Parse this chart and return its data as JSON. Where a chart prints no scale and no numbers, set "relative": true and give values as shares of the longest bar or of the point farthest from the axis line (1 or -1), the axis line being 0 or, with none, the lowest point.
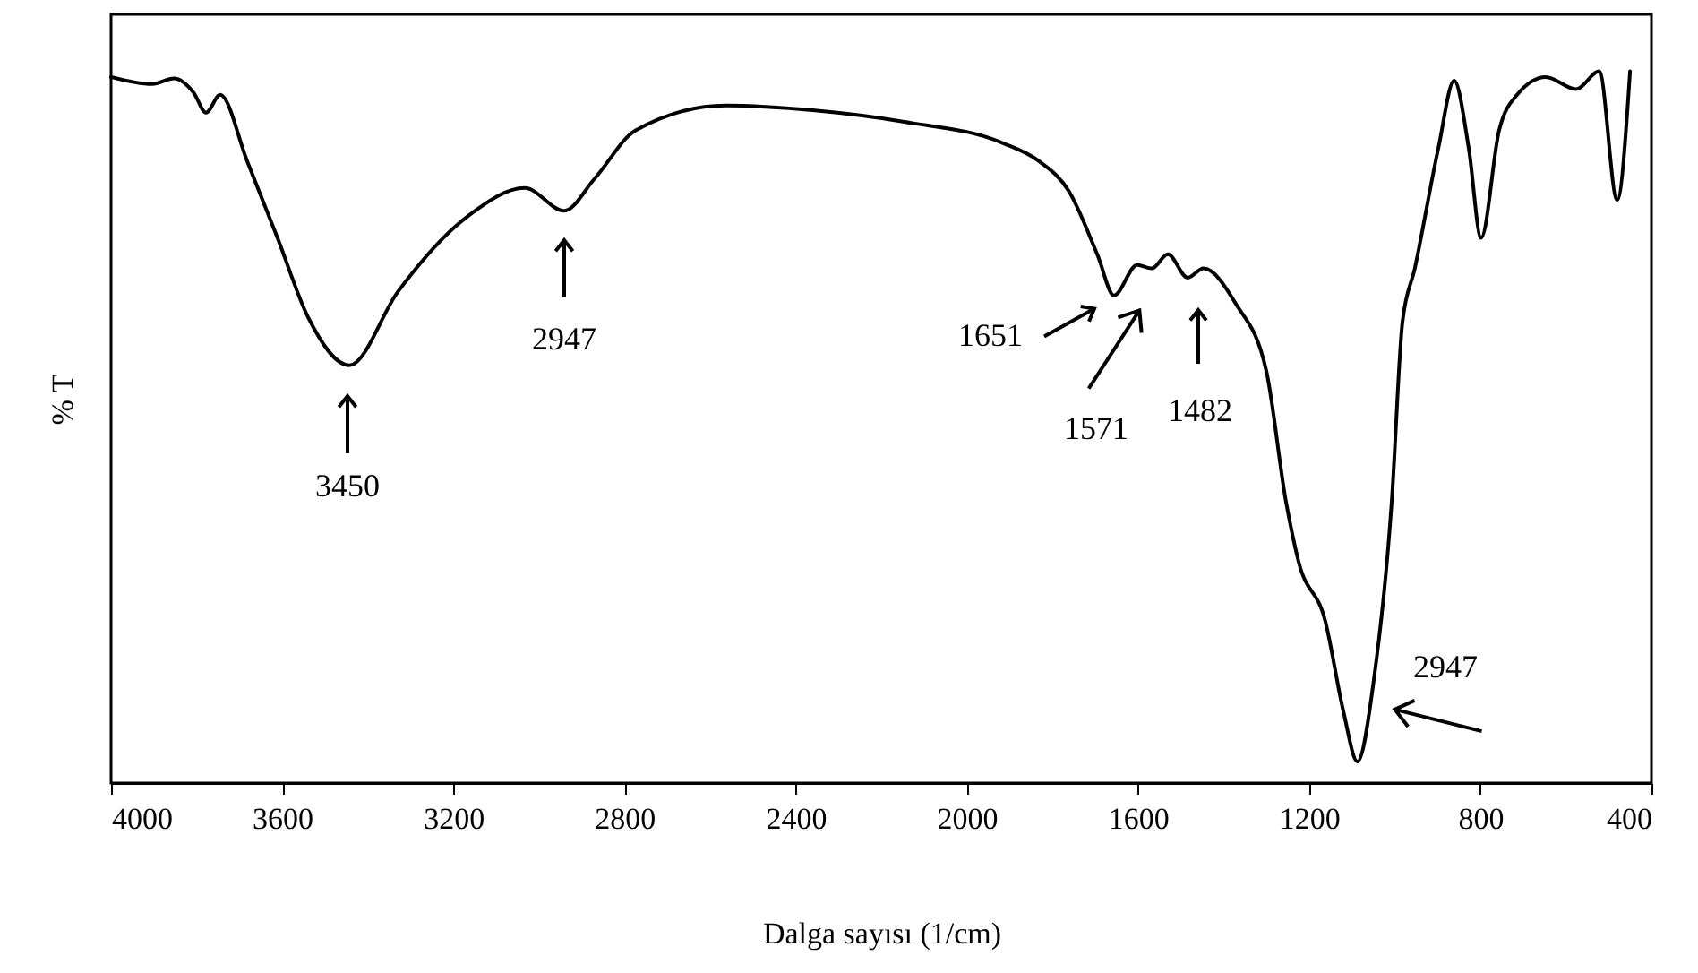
{
  "chart_data": {
    "type": "line",
    "xlabel": "Dalga sayısı (1/cm)",
    "ylabel": "% T",
    "relative": true,
    "xlim": [
      4000,
      400
    ],
    "xticks": [
      4000,
      3600,
      3200,
      2800,
      2400,
      2000,
      1600,
      1200,
      800,
      400
    ],
    "grid": false,
    "marker": "none",
    "line_style": "solid",
    "x": [
      4000,
      3904,
      3853,
      3807,
      3778,
      3745,
      3682,
      3611,
      3540,
      3443,
      3330,
      3163,
      3033,
      2941,
      2870,
      2774,
      2564,
      2355,
      2146,
      1915,
      1832,
      1761,
      1694,
      1656,
      1602,
      1568,
      1530,
      1484,
      1447,
      1371,
      1300,
      1254,
      1225,
      1162,
      1120,
      1087,
      1049,
      1007,
      982,
      953,
      898,
      861,
      827,
      798,
      756,
      714,
      647,
      576,
      522,
      480,
      450
    ],
    "series": [
      {
        "color": "#000000",
        "values": [
          0.992,
          0.982,
          0.99,
          0.97,
          0.942,
          0.967,
          0.874,
          0.766,
          0.655,
          0.587,
          0.69,
          0.798,
          0.836,
          0.804,
          0.849,
          0.917,
          0.952,
          0.945,
          0.929,
          0.899,
          0.874,
          0.831,
          0.741,
          0.685,
          0.728,
          0.723,
          0.743,
          0.71,
          0.723,
          0.673,
          0.579,
          0.395,
          0.312,
          0.227,
          0.101,
          0.03,
          0.144,
          0.395,
          0.647,
          0.723,
          0.892,
          0.987,
          0.892,
          0.766,
          0.917,
          0.967,
          0.992,
          0.975,
          1,
          0.819,
          1
        ]
      }
    ],
    "annotations": [
      "3450",
      "2947",
      "1651",
      "1571",
      "1482",
      "2947"
    ]
  }
}
